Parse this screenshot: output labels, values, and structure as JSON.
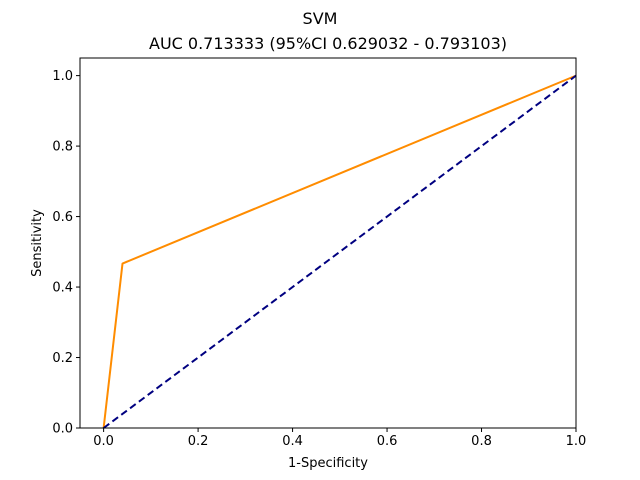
{
  "chart_data": {
    "type": "line",
    "title": "SVM",
    "subtitle": "AUC 0.713333 (95%CI 0.629032 - 0.793103)",
    "xlabel": "1-Specificity",
    "ylabel": "Sensitivity",
    "xlim": [
      -0.05,
      1.0
    ],
    "ylim": [
      0.0,
      1.05
    ],
    "xticks": [
      "0.0",
      "0.2",
      "0.4",
      "0.6",
      "0.8",
      "1.0"
    ],
    "yticks": [
      "0.0",
      "0.2",
      "0.4",
      "0.6",
      "0.8",
      "1.0"
    ],
    "grid": false,
    "series": [
      {
        "x": [
          0.0,
          0.04,
          1.0
        ],
        "y": [
          0.0,
          0.4667,
          1.0
        ],
        "color": "#ff8c00",
        "style": "solid"
      },
      {
        "x": [
          0.0,
          1.0
        ],
        "y": [
          0.0,
          1.0
        ],
        "color": "#000080",
        "style": "dashed"
      }
    ]
  }
}
